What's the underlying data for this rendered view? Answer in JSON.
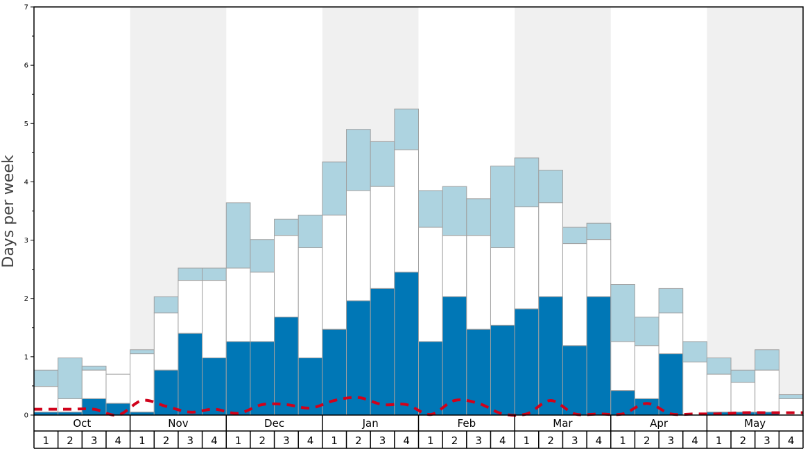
{
  "chart_data": {
    "type": "bar",
    "stacked": true,
    "ylabel": "Days per week",
    "ylim": [
      0,
      7
    ],
    "yticks": [
      "0",
      "1",
      "2",
      "3",
      "4",
      "5",
      "6",
      "7"
    ],
    "months": [
      "Oct",
      "Nov",
      "Dec",
      "Jan",
      "Feb",
      "Mar",
      "Apr",
      "May"
    ],
    "weeks": [
      "1",
      "2",
      "3",
      "4"
    ],
    "colors": {
      "dark": "#0077b6",
      "mid": "#ffffff",
      "light": "#add3e0",
      "line": "#d0021b",
      "band": "#f0f0f0"
    },
    "series_bounds": {
      "dark_top": [
        0.05,
        0.05,
        0.28,
        0.2,
        0.05,
        0.77,
        1.4,
        0.98,
        1.26,
        1.26,
        1.68,
        0.98,
        1.47,
        1.96,
        2.17,
        2.45,
        1.26,
        2.03,
        1.47,
        1.54,
        1.82,
        2.03,
        1.19,
        2.03,
        0.42,
        0.28,
        1.05,
        0.0,
        0.05,
        0.05,
        0.05,
        0.0
      ],
      "mid_top": [
        0.49,
        0.28,
        0.77,
        0.7,
        1.05,
        1.75,
        2.31,
        2.31,
        2.52,
        2.45,
        3.08,
        2.87,
        3.43,
        3.85,
        3.92,
        4.55,
        3.22,
        3.08,
        3.08,
        2.87,
        3.57,
        3.64,
        2.94,
        3.01,
        1.26,
        1.19,
        1.75,
        0.91,
        0.7,
        0.56,
        0.77,
        0.28
      ],
      "light_top": [
        0.77,
        0.98,
        0.84,
        0.7,
        1.12,
        2.03,
        2.52,
        2.52,
        3.64,
        3.01,
        3.36,
        3.43,
        4.34,
        4.9,
        4.69,
        5.25,
        3.85,
        3.92,
        3.71,
        4.27,
        4.41,
        4.2,
        3.22,
        3.29,
        2.24,
        1.68,
        2.17,
        1.26,
        0.98,
        0.77,
        1.12,
        0.35
      ]
    },
    "line_values": [
      0.1,
      0.1,
      0.1,
      0.0,
      0.25,
      0.15,
      0.05,
      0.1,
      0.03,
      0.18,
      0.18,
      0.12,
      0.25,
      0.3,
      0.18,
      0.18,
      0.01,
      0.25,
      0.2,
      0.02,
      0.02,
      0.25,
      0.02,
      0.02,
      0.02,
      0.2,
      0.02,
      0.02,
      0.02,
      0.04,
      0.04,
      0.04
    ]
  }
}
